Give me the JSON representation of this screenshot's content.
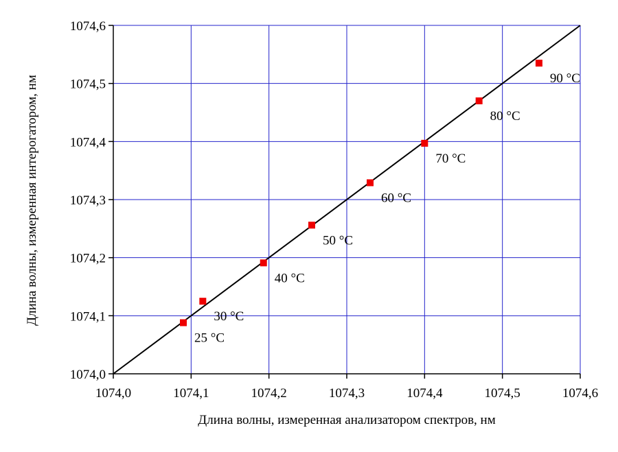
{
  "chart_data": {
    "type": "scatter",
    "title": "",
    "xlabel": "Длина волны, измеренная анализатором спектров, нм",
    "ylabel": "Длина волны, измеренная интерогатором, нм",
    "xlim": [
      1074.0,
      1074.6
    ],
    "ylim": [
      1074.0,
      1074.6
    ],
    "x_ticks": [
      1074.0,
      1074.1,
      1074.2,
      1074.3,
      1074.4,
      1074.5,
      1074.6
    ],
    "y_ticks": [
      1074.0,
      1074.1,
      1074.2,
      1074.3,
      1074.4,
      1074.5,
      1074.6
    ],
    "x_tick_labels": [
      "1074,0",
      "1074,1",
      "1074,2",
      "1074,3",
      "1074,4",
      "1074,5",
      "1074,6"
    ],
    "y_tick_labels": [
      "1074,0",
      "1074,1",
      "1074,2",
      "1074,3",
      "1074,4",
      "1074,5",
      "1074,6"
    ],
    "grid": true,
    "grid_color": "#2222cc",
    "marker_color": "#ee0000",
    "line_color": "#000000",
    "reference_line": {
      "x": [
        1074.0,
        1074.6
      ],
      "y": [
        1074.0,
        1074.6
      ]
    },
    "points": [
      {
        "x": 1074.09,
        "y": 1074.088,
        "label": "25 °C"
      },
      {
        "x": 1074.115,
        "y": 1074.125,
        "label": "30 °C"
      },
      {
        "x": 1074.193,
        "y": 1074.191,
        "label": "40 °C"
      },
      {
        "x": 1074.255,
        "y": 1074.256,
        "label": "50 °C"
      },
      {
        "x": 1074.33,
        "y": 1074.329,
        "label": "60 °C"
      },
      {
        "x": 1074.4,
        "y": 1074.397,
        "label": "70 °C"
      },
      {
        "x": 1074.47,
        "y": 1074.47,
        "label": "80 °C"
      },
      {
        "x": 1074.547,
        "y": 1074.535,
        "label": "90 °C"
      }
    ]
  }
}
